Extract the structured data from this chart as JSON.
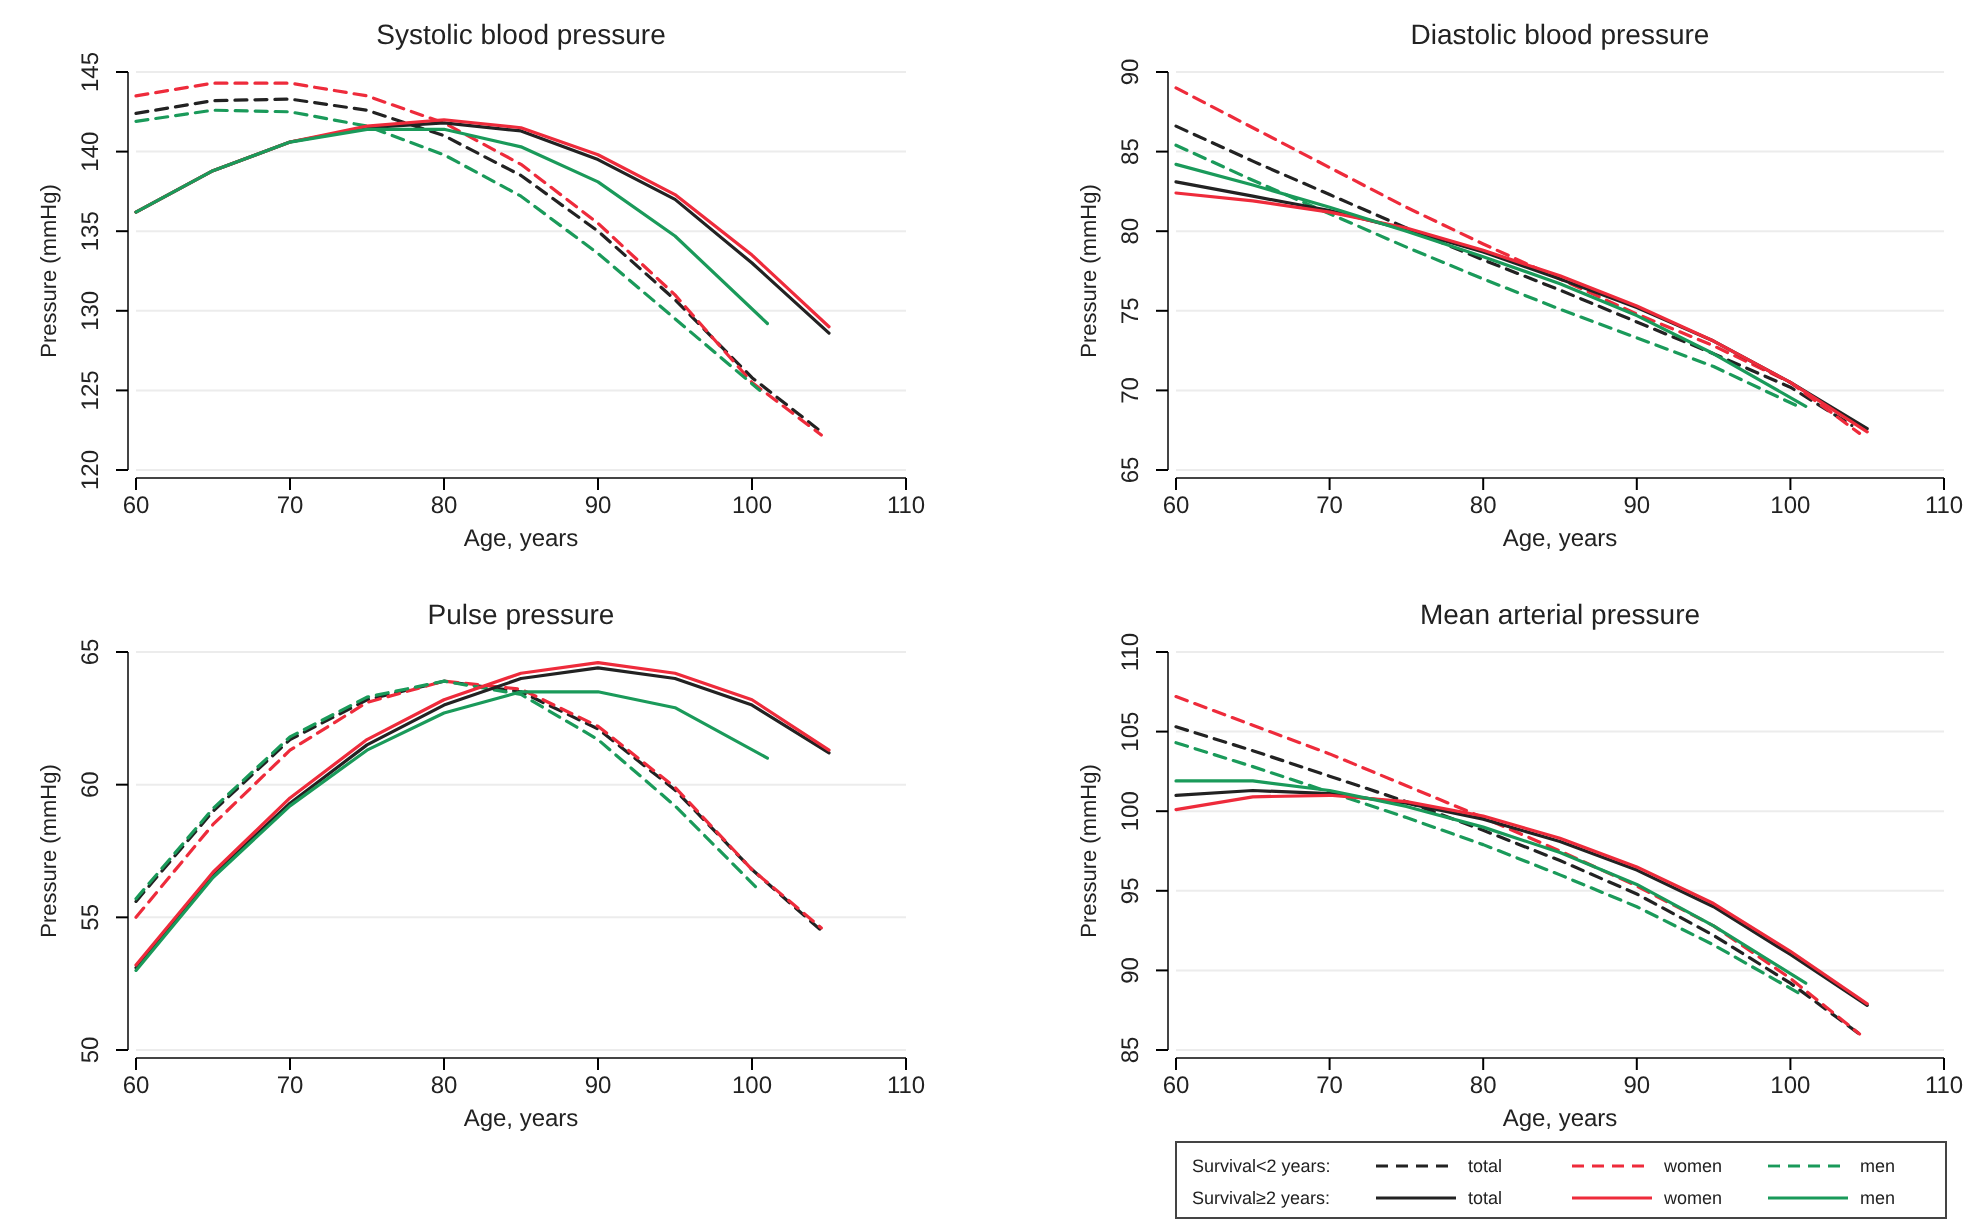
{
  "chart_data": [
    {
      "type": "line",
      "title": "Systolic blood pressure",
      "xlabel": "Age, years",
      "ylabel": "Pressure (mmHg)",
      "xlim": [
        60,
        110
      ],
      "xticks": [
        60,
        70,
        80,
        90,
        100,
        110
      ],
      "ylim": [
        120,
        145
      ],
      "yticks": [
        120,
        125,
        130,
        135,
        140,
        145
      ],
      "grid": "y",
      "legend": false,
      "series": [
        {
          "color": "#222222",
          "line_style": "dashed",
          "x": [
            60,
            65,
            70,
            75,
            80,
            85,
            90,
            95,
            100,
            104.5
          ],
          "values": [
            142.4,
            143.2,
            143.3,
            142.6,
            141,
            138.5,
            135,
            130.7,
            125.8,
            122.4
          ]
        },
        {
          "color": "#ee2b3b",
          "line_style": "dashed",
          "x": [
            60,
            65,
            70,
            75,
            80,
            85,
            90,
            95,
            100,
            104.5
          ],
          "values": [
            143.5,
            144.3,
            144.3,
            143.5,
            141.8,
            139.2,
            135.5,
            131,
            125.5,
            122.2
          ]
        },
        {
          "color": "#1a9a5a",
          "line_style": "dashed",
          "x": [
            60,
            65,
            70,
            75,
            80,
            85,
            90,
            95,
            100.5
          ],
          "values": [
            141.9,
            142.6,
            142.5,
            141.6,
            139.8,
            137.2,
            133.6,
            129.5,
            125
          ]
        },
        {
          "color": "#222222",
          "line_style": "solid",
          "x": [
            60,
            65,
            70,
            75,
            80,
            85,
            90,
            95,
            100,
            105
          ],
          "values": [
            136.2,
            138.8,
            140.6,
            141.5,
            141.8,
            141.3,
            139.5,
            137,
            133,
            128.6
          ]
        },
        {
          "color": "#ee2b3b",
          "line_style": "solid",
          "x": [
            60,
            65,
            70,
            75,
            80,
            85,
            90,
            95,
            100,
            105
          ],
          "values": [
            136.2,
            138.8,
            140.6,
            141.6,
            142,
            141.5,
            139.8,
            137.3,
            133.5,
            129
          ]
        },
        {
          "color": "#1a9a5a",
          "line_style": "solid",
          "x": [
            60,
            65,
            70,
            75,
            80,
            85,
            90,
            95,
            101
          ],
          "values": [
            136.2,
            138.8,
            140.6,
            141.4,
            141.4,
            140.3,
            138.1,
            134.7,
            129.2
          ]
        }
      ]
    },
    {
      "type": "line",
      "title": "Diastolic blood pressure",
      "xlabel": "Age, years",
      "ylabel": "Pressure (mmHg)",
      "xlim": [
        60,
        110
      ],
      "xticks": [
        60,
        70,
        80,
        90,
        100,
        110
      ],
      "ylim": [
        65,
        90
      ],
      "yticks": [
        65,
        70,
        75,
        80,
        85,
        90
      ],
      "grid": "y",
      "legend": false,
      "series": [
        {
          "color": "#222222",
          "line_style": "dashed",
          "x": [
            60,
            65,
            70,
            75,
            80,
            85,
            90,
            95,
            100,
            104
          ],
          "values": [
            86.6,
            84.4,
            82.3,
            80.2,
            78.2,
            76.3,
            74.3,
            72.3,
            70.2,
            67.8
          ]
        },
        {
          "color": "#ee2b3b",
          "line_style": "dashed",
          "x": [
            60,
            65,
            70,
            75,
            80,
            85,
            90,
            95,
            100,
            104.5
          ],
          "values": [
            89,
            86.5,
            84,
            81.5,
            79.2,
            77,
            74.8,
            72.8,
            70.5,
            67.3
          ]
        },
        {
          "color": "#1a9a5a",
          "line_style": "dashed",
          "x": [
            60,
            65,
            70,
            75,
            80,
            85,
            90,
            95,
            100.5
          ],
          "values": [
            85.4,
            83.2,
            81.1,
            79,
            77,
            75.1,
            73.3,
            71.5,
            69
          ]
        },
        {
          "color": "#222222",
          "line_style": "solid",
          "x": [
            60,
            65,
            70,
            75,
            80,
            85,
            90,
            95,
            100,
            105
          ],
          "values": [
            83.1,
            82.2,
            81.3,
            80.1,
            78.7,
            77,
            75.2,
            73.1,
            70.5,
            67.6
          ]
        },
        {
          "color": "#ee2b3b",
          "line_style": "solid",
          "x": [
            60,
            65,
            70,
            75,
            80,
            85,
            90,
            95,
            100,
            105
          ],
          "values": [
            82.4,
            81.9,
            81.2,
            80.2,
            78.8,
            77.2,
            75.3,
            73.1,
            70.5,
            67.4
          ]
        },
        {
          "color": "#1a9a5a",
          "line_style": "solid",
          "x": [
            60,
            65,
            70,
            75,
            80,
            85,
            90,
            95,
            101
          ],
          "values": [
            84.2,
            82.9,
            81.5,
            80,
            78.4,
            76.7,
            74.7,
            72.3,
            69
          ]
        }
      ]
    },
    {
      "type": "line",
      "title": "Pulse pressure",
      "xlabel": "Age, years",
      "ylabel": "Pressure (mmHg)",
      "xlim": [
        60,
        110
      ],
      "xticks": [
        60,
        70,
        80,
        90,
        100,
        110
      ],
      "ylim": [
        50,
        65
      ],
      "yticks": [
        50,
        55,
        60,
        65
      ],
      "grid": "y",
      "legend": false,
      "series": [
        {
          "color": "#222222",
          "line_style": "dashed",
          "x": [
            60,
            65,
            70,
            75,
            80,
            85,
            90,
            95,
            100,
            104.5
          ],
          "values": [
            55.6,
            59,
            61.7,
            63.2,
            63.9,
            63.5,
            62.1,
            59.8,
            56.8,
            54.5
          ]
        },
        {
          "color": "#ee2b3b",
          "line_style": "dashed",
          "x": [
            60,
            65,
            70,
            75,
            80,
            85,
            90,
            95,
            100,
            104.5
          ],
          "values": [
            55,
            58.5,
            61.3,
            63.1,
            63.9,
            63.6,
            62.2,
            59.9,
            56.8,
            54.6
          ]
        },
        {
          "color": "#1a9a5a",
          "line_style": "dashed",
          "x": [
            60,
            65,
            70,
            75,
            80,
            85,
            90,
            95,
            100.5
          ],
          "values": [
            55.7,
            59.1,
            61.8,
            63.3,
            63.9,
            63.4,
            61.7,
            59.2,
            56
          ]
        },
        {
          "color": "#222222",
          "line_style": "solid",
          "x": [
            60,
            65,
            70,
            75,
            80,
            85,
            90,
            95,
            100,
            105
          ],
          "values": [
            53.1,
            56.6,
            59.3,
            61.5,
            63,
            64,
            64.4,
            64,
            63,
            61.2
          ]
        },
        {
          "color": "#ee2b3b",
          "line_style": "solid",
          "x": [
            60,
            65,
            70,
            75,
            80,
            85,
            90,
            95,
            100,
            105
          ],
          "values": [
            53.2,
            56.7,
            59.5,
            61.7,
            63.2,
            64.2,
            64.6,
            64.2,
            63.2,
            61.3
          ]
        },
        {
          "color": "#1a9a5a",
          "line_style": "solid",
          "x": [
            60,
            65,
            70,
            75,
            80,
            85,
            90,
            95,
            101
          ],
          "values": [
            53,
            56.5,
            59.2,
            61.3,
            62.7,
            63.5,
            63.5,
            62.9,
            61
          ]
        }
      ]
    },
    {
      "type": "line",
      "title": "Mean arterial pressure",
      "xlabel": "Age, years",
      "ylabel": "Pressure (mmHg)",
      "xlim": [
        60,
        110
      ],
      "xticks": [
        60,
        70,
        80,
        90,
        100,
        110
      ],
      "ylim": [
        85,
        110
      ],
      "yticks": [
        85,
        90,
        95,
        100,
        105,
        110
      ],
      "grid": "y",
      "legend": "bottom",
      "annotations": [
        "Survival<2 years:",
        "Survival≥2 years:"
      ],
      "series": [
        {
          "name": "total",
          "color": "#222222",
          "line_style": "dashed",
          "x": [
            60,
            65,
            70,
            75,
            80,
            85,
            90,
            95,
            100,
            104.5
          ],
          "values": [
            105.3,
            103.8,
            102.2,
            100.6,
            98.8,
            96.9,
            94.8,
            92.2,
            89.2,
            86
          ]
        },
        {
          "name": "women",
          "color": "#ee2b3b",
          "line_style": "dashed",
          "x": [
            60,
            65,
            70,
            75,
            80,
            85,
            90,
            95,
            100,
            104.5
          ],
          "values": [
            107.2,
            105.4,
            103.6,
            101.6,
            99.6,
            97.5,
            95.3,
            92.8,
            89.5,
            86
          ]
        },
        {
          "name": "men",
          "color": "#1a9a5a",
          "line_style": "dashed",
          "x": [
            60,
            65,
            70,
            75,
            80,
            85,
            90,
            95,
            100.5
          ],
          "values": [
            104.3,
            102.8,
            101.2,
            99.6,
            97.9,
            96,
            94,
            91.6,
            88.6
          ]
        },
        {
          "name": "total",
          "color": "#222222",
          "line_style": "solid",
          "x": [
            60,
            65,
            70,
            75,
            80,
            85,
            90,
            95,
            100,
            105
          ],
          "values": [
            101,
            101.3,
            101.1,
            100.5,
            99.5,
            98.1,
            96.3,
            94,
            91,
            87.8
          ]
        },
        {
          "name": "women",
          "color": "#ee2b3b",
          "line_style": "solid",
          "x": [
            60,
            65,
            70,
            75,
            80,
            85,
            90,
            95,
            100,
            105
          ],
          "values": [
            100.1,
            100.9,
            101,
            100.6,
            99.7,
            98.3,
            96.5,
            94.2,
            91.2,
            87.9
          ]
        },
        {
          "name": "men",
          "color": "#1a9a5a",
          "line_style": "solid",
          "x": [
            60,
            65,
            70,
            75,
            80,
            85,
            90,
            95,
            101
          ],
          "values": [
            101.9,
            101.9,
            101.3,
            100.3,
            99,
            97.4,
            95.4,
            92.8,
            89.2
          ]
        }
      ]
    }
  ]
}
